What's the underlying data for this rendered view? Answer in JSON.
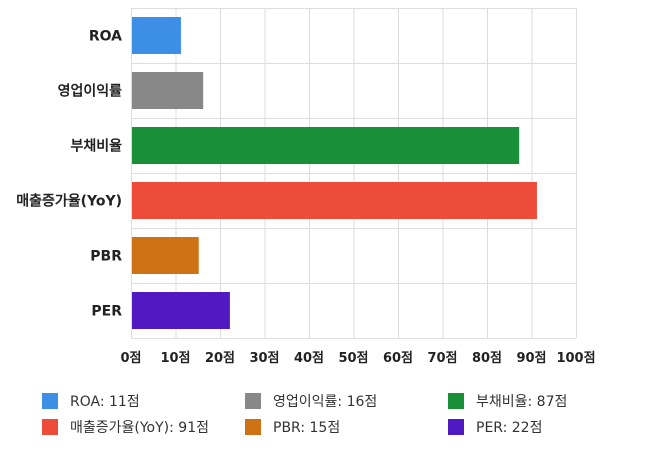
{
  "chart_data": {
    "type": "bar",
    "orientation": "horizontal",
    "categories": [
      "ROA",
      "영업이익률",
      "부채비율",
      "매출증가율(YoY)",
      "PBR",
      "PER"
    ],
    "values": [
      11,
      16,
      87,
      91,
      15,
      22
    ],
    "colors": [
      "#3d8fe6",
      "#888888",
      "#1a8f3a",
      "#ee4c3a",
      "#cd7316",
      "#5019c2"
    ],
    "xlim": [
      0,
      100
    ],
    "xticks": [
      0,
      10,
      20,
      30,
      40,
      50,
      60,
      70,
      80,
      90,
      100
    ],
    "tick_suffix": "점",
    "grid": true,
    "legend": {
      "position": "bottom",
      "items": [
        {
          "label": "ROA: 11점",
          "color": "#3d8fe6"
        },
        {
          "label": "영업이익률: 16점",
          "color": "#888888"
        },
        {
          "label": "부채비율: 87점",
          "color": "#1a8f3a"
        },
        {
          "label": "매출증가율(YoY): 91점",
          "color": "#ee4c3a"
        },
        {
          "label": "PBR: 15점",
          "color": "#cd7316"
        },
        {
          "label": "PER: 22점",
          "color": "#5019c2"
        }
      ]
    }
  }
}
